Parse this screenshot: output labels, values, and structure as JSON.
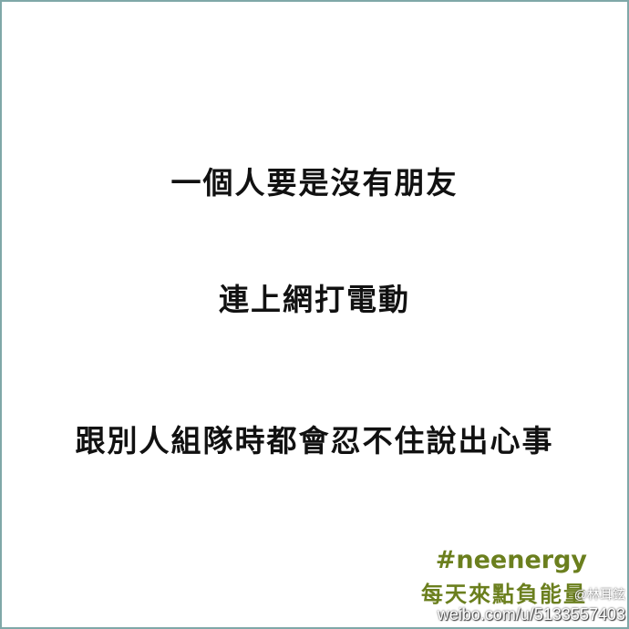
{
  "lines": [
    "一個人要是沒有朋友",
    "連上網打電動",
    "跟別人組隊時都會忍不住說出心事"
  ],
  "branding": {
    "hashtag": "#neenergy",
    "tagline": "每天來點負能量",
    "accent_color": "#6b7f1e"
  },
  "watermark": {
    "user": "@林耳鉉",
    "url": "weibo.com/u/5133557403"
  }
}
